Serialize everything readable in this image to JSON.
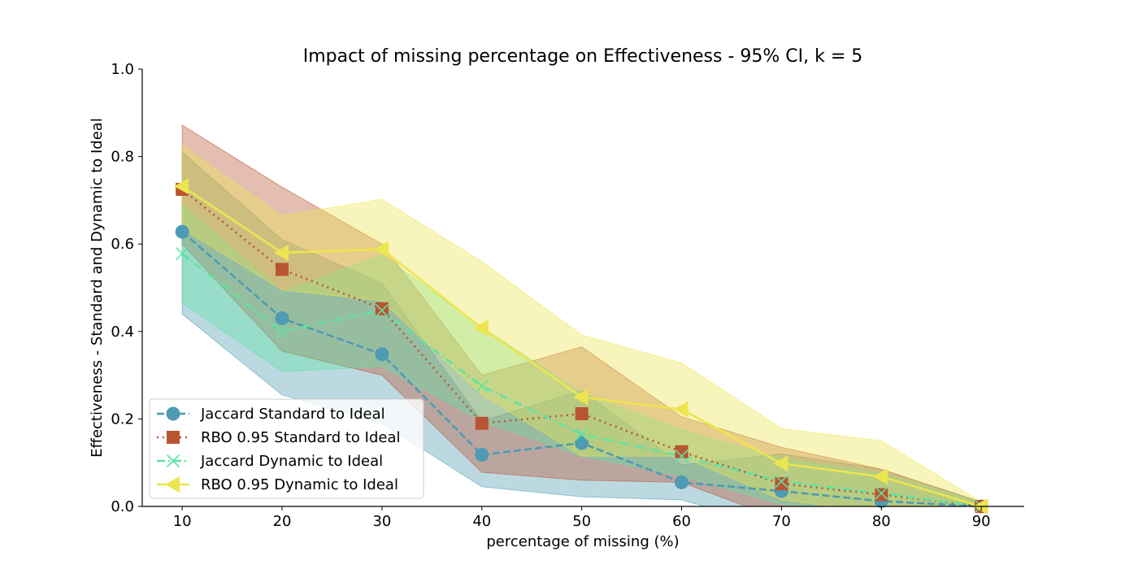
{
  "chart_data": {
    "type": "line",
    "title": "Impact of missing percentage on Effectiveness - 95% CI, k = 5",
    "xlabel": "percentage of missing (%)",
    "ylabel": "Effectiveness - Standard and Dynamic to Ideal",
    "x": [
      10,
      20,
      30,
      40,
      50,
      60,
      70,
      80,
      90
    ],
    "x_ticks": [
      "10",
      "20",
      "30",
      "40",
      "50",
      "60",
      "70",
      "80",
      "90"
    ],
    "y_ticks": [
      "0.0",
      "0.2",
      "0.4",
      "0.6",
      "0.8",
      "1.0"
    ],
    "xlim": [
      6,
      94.3
    ],
    "ylim": [
      0,
      1
    ],
    "grid": false,
    "legend_position": "lower-left",
    "series": [
      {
        "name": "Jaccard Standard to Ideal",
        "color": "#4e9bb3",
        "marker": "circle",
        "linestyle": "dashed",
        "values": [
          0.628,
          0.43,
          0.348,
          0.118,
          0.145,
          0.055,
          0.035,
          0.012,
          0.0
        ],
        "ci_lower": [
          0.44,
          0.255,
          0.19,
          0.045,
          0.022,
          0.015,
          -0.05,
          -0.06,
          -0.02
        ],
        "ci_upper": [
          0.81,
          0.61,
          0.51,
          0.195,
          0.265,
          0.095,
          0.12,
          0.085,
          0.01
        ]
      },
      {
        "name": "RBO 0.95 Standard to Ideal",
        "color": "#b95432",
        "marker": "square",
        "linestyle": "dotted",
        "values": [
          0.725,
          0.542,
          0.452,
          0.19,
          0.212,
          0.125,
          0.052,
          0.027,
          0.0
        ],
        "ci_lower": [
          0.6,
          0.355,
          0.3,
          0.078,
          0.06,
          0.055,
          -0.03,
          -0.02,
          0.0
        ],
        "ci_upper": [
          0.872,
          0.73,
          0.6,
          0.3,
          0.365,
          0.205,
          0.135,
          0.085,
          0.01
        ]
      },
      {
        "name": "Jaccard Dynamic to Ideal",
        "color": "#5ee3a4",
        "marker": "x",
        "linestyle": "dashdot",
        "values": [
          0.578,
          0.4,
          0.448,
          0.275,
          0.165,
          0.115,
          0.057,
          0.03,
          0.0
        ],
        "ci_lower": [
          0.465,
          0.308,
          0.32,
          0.195,
          0.115,
          0.07,
          0.005,
          -0.01,
          -0.01
        ],
        "ci_upper": [
          0.69,
          0.49,
          0.575,
          0.41,
          0.26,
          0.175,
          0.11,
          0.075,
          0.01
        ]
      },
      {
        "name": "RBO 0.95 Dynamic to Ideal",
        "color": "#ede54f",
        "marker": "triangle-left",
        "linestyle": "solid",
        "values": [
          0.732,
          0.58,
          0.588,
          0.408,
          0.25,
          0.222,
          0.098,
          0.068,
          0.0
        ],
        "ci_lower": [
          0.635,
          0.495,
          0.47,
          0.255,
          0.115,
          0.115,
          0.015,
          -0.015,
          0.0
        ],
        "ci_upper": [
          0.825,
          0.665,
          0.702,
          0.56,
          0.392,
          0.328,
          0.178,
          0.15,
          0.01
        ]
      }
    ]
  }
}
